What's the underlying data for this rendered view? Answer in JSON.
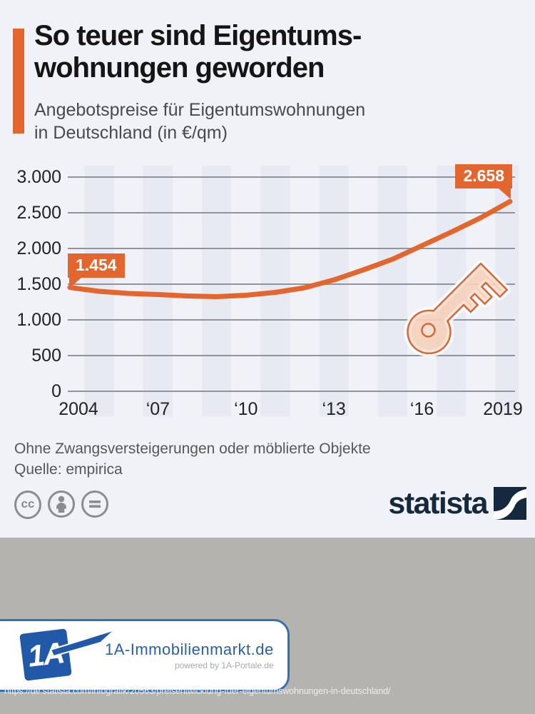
{
  "header": {
    "title_line1": "So teuer sind Eigentums-",
    "title_line2": "wohnungen geworden",
    "subtitle_line1": "Angebotspreise für Eigentumswohnungen",
    "subtitle_line2": "in Deutschland (in €/qm)"
  },
  "chart_data": {
    "type": "line",
    "title": "Angebotspreise für Eigentumswohnungen in Deutschland (in €/qm)",
    "x": [
      2004,
      2005,
      2006,
      2007,
      2008,
      2009,
      2010,
      2011,
      2012,
      2013,
      2014,
      2015,
      2016,
      2017,
      2018,
      2019
    ],
    "values": [
      1454,
      1400,
      1370,
      1355,
      1335,
      1325,
      1345,
      1385,
      1450,
      1560,
      1700,
      1850,
      2040,
      2230,
      2430,
      2658
    ],
    "series_name": "Angebotspreis in €/qm",
    "ylim": [
      0,
      3000
    ],
    "yticks": [
      0,
      500,
      1000,
      1500,
      2000,
      2500,
      3000
    ],
    "ytick_labels": [
      "0",
      "500",
      "1.000",
      "1.500",
      "2.000",
      "2.500",
      "3.000"
    ],
    "xticks": [
      {
        "label": "2004",
        "year": 2004
      },
      {
        "label": "‘07",
        "year": 2007
      },
      {
        "label": "‘10",
        "year": 2010
      },
      {
        "label": "‘13",
        "year": 2013
      },
      {
        "label": "‘16",
        "year": 2016
      },
      {
        "label": "2019",
        "year": 2019
      }
    ],
    "annotations": {
      "start": {
        "label": "1.454",
        "year": 2004,
        "value": 1454
      },
      "end": {
        "label": "2.658",
        "year": 2019,
        "value": 2658
      }
    },
    "grid": true,
    "legend": "none",
    "line_color": "#e2662e",
    "stripe_color": "#e7eaf3",
    "grid_color": "#8f959e"
  },
  "footer": {
    "note": "Ohne Zwangsversteigerungen oder möblierte Objekte",
    "source": "Quelle: empirica",
    "brand": "statista",
    "license_cc_label": "cc"
  },
  "banner": {
    "logo_text": "1A",
    "title": "1A-Immobilienmarkt.de",
    "powered_by": "powered by 1A-Portale.de"
  },
  "url": "https://de.statista.com/infografik/20563/preisentwicklung-fuer-eigentumswohnungen-in-deutschland/"
}
